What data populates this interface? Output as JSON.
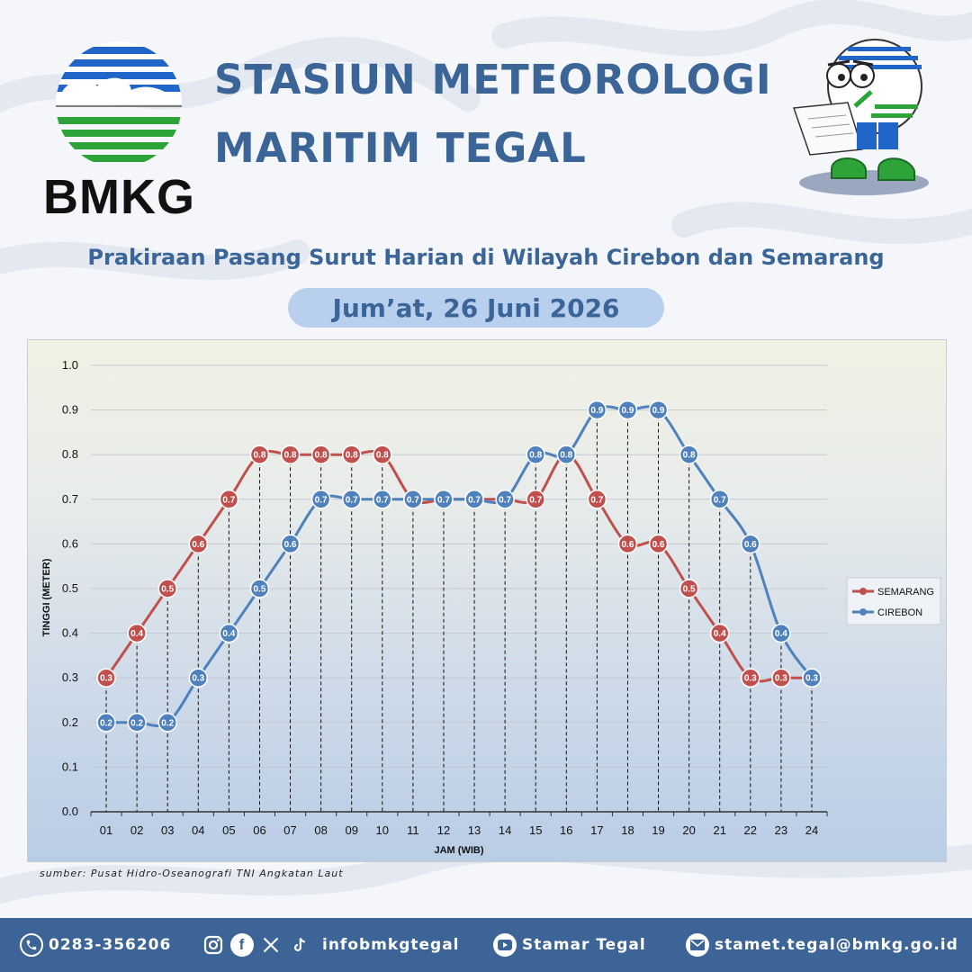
{
  "header": {
    "logo_text": "BMKG",
    "title_line1": "STASIUN METEOROLOGI",
    "title_line2": "MARITIM TEGAL",
    "subtitle": "Prakiraan Pasang Surut Harian di Wilayah Cirebon dan Semarang",
    "date": "Jum’at, 26 Juni 2026"
  },
  "colors": {
    "title_blue": "#3b6497",
    "semarang_red": "#c0504d",
    "cirebon_blue": "#4f81bd",
    "footer_blue": "#3c6496",
    "logo_blue": "#1f66c8",
    "logo_green": "#2ea33a"
  },
  "chart_data": {
    "type": "line",
    "xlabel": "JAM (WIB)",
    "ylabel": "TINGGI (METER)",
    "ylim": [
      0,
      1.0
    ],
    "yticks": [
      "0.0",
      "0.1",
      "0.2",
      "0.3",
      "0.4",
      "0.5",
      "0.6",
      "0.7",
      "0.8",
      "0.9",
      "1.0"
    ],
    "categories": [
      "01",
      "02",
      "03",
      "04",
      "05",
      "06",
      "07",
      "08",
      "09",
      "10",
      "11",
      "12",
      "13",
      "14",
      "15",
      "16",
      "17",
      "18",
      "19",
      "20",
      "21",
      "22",
      "23",
      "24"
    ],
    "series": [
      {
        "name": "SEMARANG",
        "color": "#c0504d",
        "values": [
          0.3,
          0.4,
          0.5,
          0.6,
          0.7,
          0.8,
          0.8,
          0.8,
          0.8,
          0.8,
          0.7,
          0.7,
          0.7,
          0.7,
          0.7,
          0.8,
          0.7,
          0.6,
          0.6,
          0.5,
          0.4,
          0.3,
          0.3,
          0.3
        ]
      },
      {
        "name": "CIREBON",
        "color": "#4f81bd",
        "values": [
          0.2,
          0.2,
          0.2,
          0.3,
          0.4,
          0.5,
          0.6,
          0.7,
          0.7,
          0.7,
          0.7,
          0.7,
          0.7,
          0.7,
          0.8,
          0.8,
          0.9,
          0.9,
          0.9,
          0.8,
          0.7,
          0.6,
          0.4,
          0.3
        ]
      }
    ],
    "data_labels": true,
    "drop_lines": true,
    "grid": true,
    "legend_position": "right"
  },
  "source_text": "sumber: Pusat Hidro-Oseanografi TNI Angkatan Laut",
  "footer": {
    "phone": "0283-356206",
    "social_handle": "infobmkgtegal",
    "youtube": "Stamar Tegal",
    "email": "stamet.tegal@bmkg.go.id"
  },
  "icons": {
    "phone": "phone-icon",
    "instagram": "instagram-icon",
    "facebook": "facebook-icon",
    "x": "x-icon",
    "tiktok": "tiktok-icon",
    "youtube": "youtube-icon",
    "email": "email-icon"
  }
}
